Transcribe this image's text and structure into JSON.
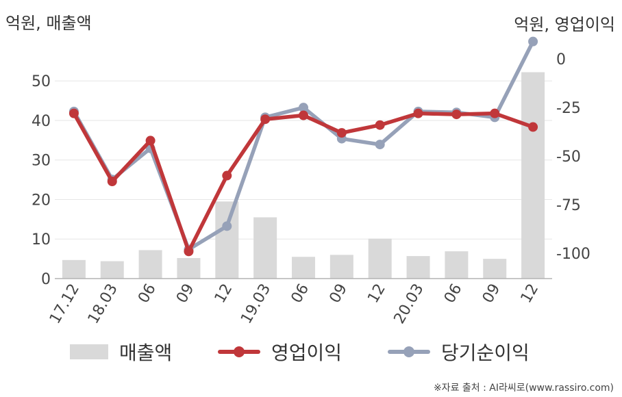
{
  "units": {
    "left": "억원, 매출액",
    "right": "억원, 영업이익"
  },
  "source": "※자료 출처 : AI라씨로(www.rassiro.com)",
  "colors": {
    "bar": "#d9d9d9",
    "operating": "#c0373a",
    "net": "#96a1b8",
    "grid": "#e6e6e6",
    "axis": "#b3b3b3",
    "tick": "#444444"
  },
  "chart_data": {
    "type": "bar+line",
    "categories": [
      "17.12",
      "18.03",
      "06",
      "09",
      "12",
      "19.03",
      "06",
      "09",
      "12",
      "20.03",
      "06",
      "09",
      "12"
    ],
    "left_axis": {
      "ticks": [
        0,
        10,
        20,
        30,
        40,
        50
      ],
      "ylim": [
        0,
        58
      ]
    },
    "right_axis": {
      "ticks": [
        0,
        -25,
        -50,
        -75,
        -100
      ],
      "ylim": [
        -113,
        5
      ]
    },
    "series": [
      {
        "name": "매출액",
        "type": "bar",
        "axis": "left",
        "values": [
          4.7,
          4.4,
          7.2,
          5.2,
          19.5,
          15.5,
          5.5,
          6.0,
          10.1,
          5.7,
          6.9,
          5.0,
          52.2
        ]
      },
      {
        "name": "영업이익",
        "type": "line",
        "axis": "right",
        "values": [
          -28,
          -63,
          -42,
          -99,
          -60,
          -31,
          -29,
          -38,
          -34,
          -28,
          -28.5,
          -28,
          -35
        ]
      },
      {
        "name": "당기순이익",
        "type": "line",
        "axis": "right",
        "values": [
          -27,
          -62,
          -46,
          -98,
          -86,
          -30,
          -25,
          -41,
          -44,
          -27,
          -27.5,
          -30,
          9
        ]
      }
    ],
    "grid": true,
    "legend_position": "bottom"
  }
}
